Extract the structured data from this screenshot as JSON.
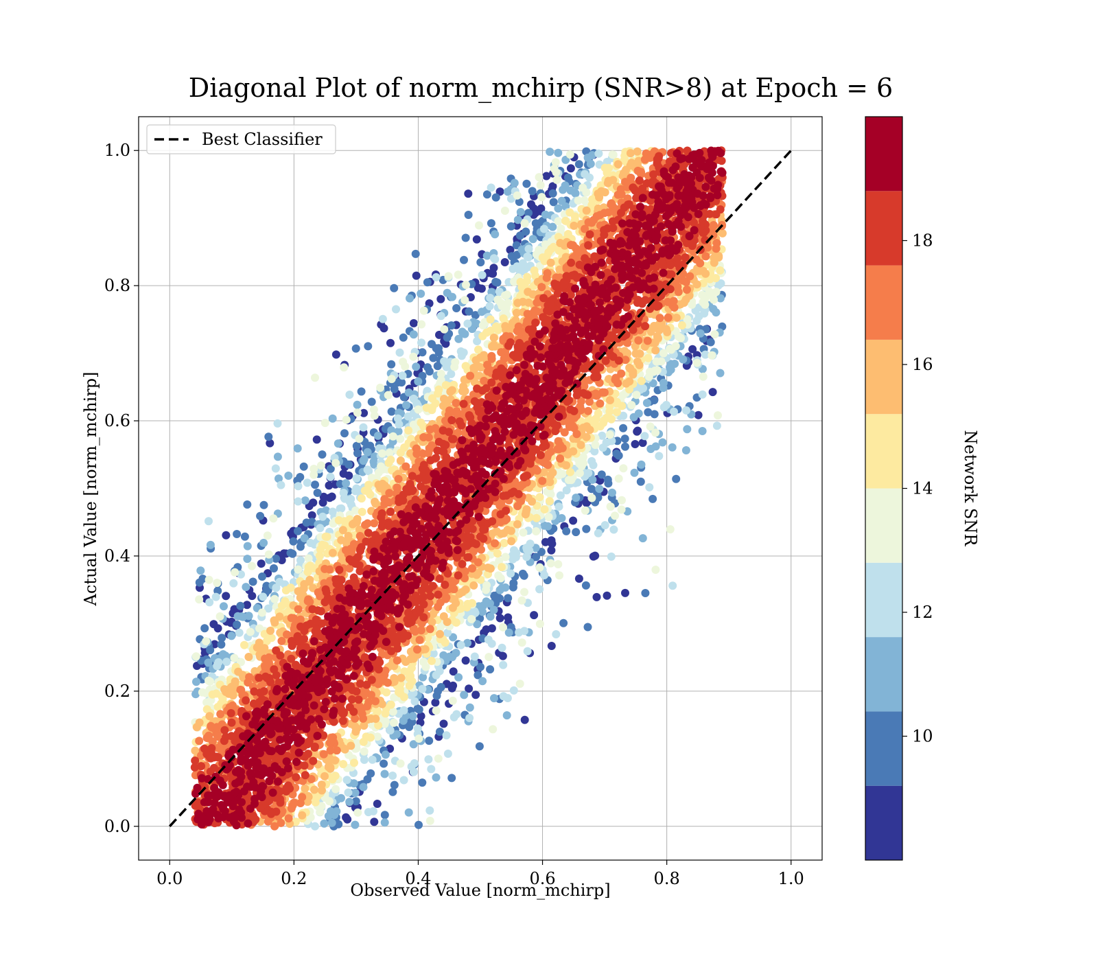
{
  "chart_data": {
    "type": "scatter",
    "title": "Diagonal Plot of norm_mchirp (SNR>8) at Epoch = 6",
    "xlabel": "Observed Value [norm_mchirp]",
    "ylabel": "Actual Value [norm_mchirp]",
    "xlim": [
      -0.05,
      1.05
    ],
    "ylim": [
      -0.05,
      1.05
    ],
    "x_ticks": [
      "0.0",
      "0.2",
      "0.4",
      "0.6",
      "0.8",
      "1.0"
    ],
    "y_ticks": [
      "0.0",
      "0.2",
      "0.4",
      "0.6",
      "0.8",
      "1.0"
    ],
    "grid": true,
    "legend": {
      "placement": "upper-left",
      "entries": [
        {
          "label": "Best Classifier",
          "style": "dashed",
          "color": "#000000"
        }
      ]
    },
    "reference_line": {
      "label": "Best Classifier",
      "x": [
        0.0,
        1.0
      ],
      "y": [
        0.0,
        1.0
      ]
    },
    "scatter": {
      "marker": "circle",
      "description_of_distribution": "points spread around the diagonal; high-SNR points concentrated near the diagonal, low-SNR points on the outer edges",
      "core_band_halfwidth": 0.22,
      "x_range": [
        0.04,
        0.89
      ],
      "y_range": [
        0.0,
        1.0
      ]
    },
    "colorbar": {
      "label": "Network SNR",
      "ticks": [
        "10",
        "12",
        "14",
        "16",
        "18"
      ],
      "range": [
        8,
        20
      ],
      "bins": [
        {
          "from": 8,
          "to": 9.2,
          "color": "#313695"
        },
        {
          "from": 9.2,
          "to": 10.4,
          "color": "#4a7ab6"
        },
        {
          "from": 10.4,
          "to": 11.6,
          "color": "#82b4d6"
        },
        {
          "from": 11.6,
          "to": 12.8,
          "color": "#bfe0ec"
        },
        {
          "from": 12.8,
          "to": 14.0,
          "color": "#edf6dc"
        },
        {
          "from": 14.0,
          "to": 15.2,
          "color": "#fdeaa0"
        },
        {
          "from": 15.2,
          "to": 16.4,
          "color": "#fdbd71"
        },
        {
          "from": 16.4,
          "to": 17.6,
          "color": "#f57d4b"
        },
        {
          "from": 17.6,
          "to": 18.8,
          "color": "#d73a2b"
        },
        {
          "from": 18.8,
          "to": 20.0,
          "color": "#a50026"
        }
      ]
    }
  }
}
